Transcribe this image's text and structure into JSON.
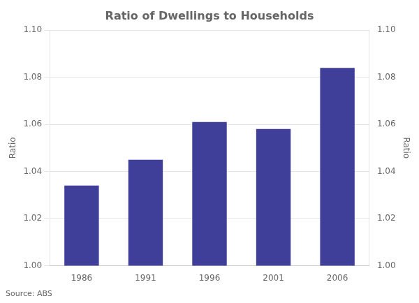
{
  "chart_data": {
    "type": "bar",
    "title": "Ratio of Dwellings to Households",
    "categories": [
      "1986",
      "1991",
      "1996",
      "2001",
      "2006"
    ],
    "values": [
      1.034,
      1.045,
      1.061,
      1.058,
      1.084
    ],
    "color": "#3F3F99",
    "ylabel": "Ratio",
    "y2label": "Ratio",
    "source": "Source: ABS",
    "ylim": [
      1.0,
      1.1
    ],
    "yticks": [
      {
        "value": 1.0,
        "label": "1.00"
      },
      {
        "value": 1.02,
        "label": "1.02"
      },
      {
        "value": 1.04,
        "label": "1.04"
      },
      {
        "value": 1.06,
        "label": "1.06"
      },
      {
        "value": 1.08,
        "label": "1.08"
      },
      {
        "value": 1.1,
        "label": "1.10"
      }
    ],
    "y2lim": [
      1.0,
      1.1
    ],
    "y2ticks": [
      {
        "value": 1.0,
        "label": "1.00"
      },
      {
        "value": 1.02,
        "label": "1.02"
      },
      {
        "value": 1.04,
        "label": "1.04"
      },
      {
        "value": 1.06,
        "label": "1.06"
      },
      {
        "value": 1.08,
        "label": "1.08"
      },
      {
        "value": 1.1,
        "label": "1.10"
      }
    ],
    "grid": true
  }
}
